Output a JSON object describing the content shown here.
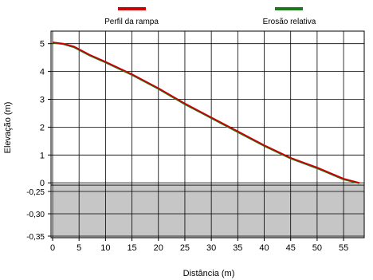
{
  "chart_data": {
    "type": "line",
    "xlabel": "Distância (m)",
    "ylabel": "Elevação (m)",
    "xlim": [
      0,
      58
    ],
    "ylim_upper": [
      0,
      5
    ],
    "ylim_lower": [
      -0.35,
      -0.25
    ],
    "x_ticks": [
      "0",
      "5",
      "10",
      "15",
      "20",
      "25",
      "30",
      "35",
      "40",
      "45",
      "50",
      "55"
    ],
    "y_ticks_upper": [
      "0",
      "1",
      "2",
      "3",
      "4",
      "5"
    ],
    "y_ticks_lower": [
      "-0,25",
      "-0,30",
      "-0,35"
    ],
    "grid": true,
    "legend_placement": "top",
    "series": [
      {
        "name": "Perfil da rampa",
        "color": "#cc0000",
        "x": [
          0,
          2,
          4,
          7,
          10,
          15,
          20,
          25,
          30,
          35,
          40,
          45,
          50,
          55,
          58
        ],
        "y": [
          5.05,
          5.0,
          4.9,
          4.6,
          4.35,
          3.9,
          3.4,
          2.85,
          2.35,
          1.85,
          1.35,
          0.9,
          0.55,
          0.15,
          0.0
        ]
      },
      {
        "name": "Erosão relativa",
        "color": "#1a7a1a",
        "x": [
          0,
          2,
          4,
          7,
          10,
          15,
          20,
          25,
          30,
          35,
          40,
          45,
          50,
          55,
          58
        ],
        "y": [
          5.03,
          4.98,
          4.87,
          4.57,
          4.32,
          3.87,
          3.37,
          2.82,
          2.32,
          1.82,
          1.32,
          0.87,
          0.52,
          0.12,
          -0.02
        ]
      }
    ]
  }
}
